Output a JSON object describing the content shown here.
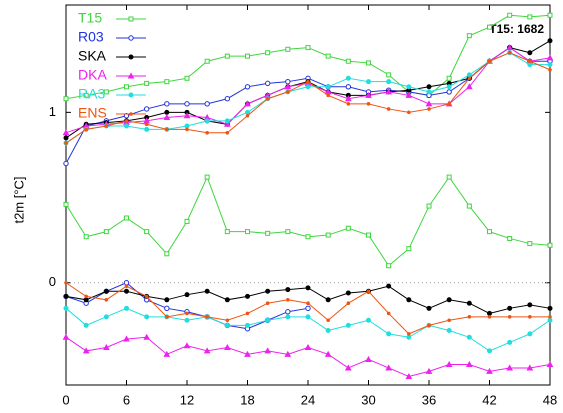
{
  "chart_data": {
    "type": "line",
    "ylabel": "t2m [°C]",
    "annotation": "T15: 1682",
    "x": [
      0,
      2,
      4,
      6,
      8,
      10,
      12,
      14,
      16,
      18,
      20,
      22,
      24,
      26,
      28,
      30,
      32,
      34,
      36,
      38,
      40,
      42,
      44,
      46,
      48
    ],
    "xlim": [
      0,
      48
    ],
    "xticks": [
      0,
      6,
      12,
      18,
      24,
      30,
      36,
      42,
      48
    ],
    "ylim": [
      -0.6,
      1.63
    ],
    "yticks": [
      0,
      1
    ],
    "zero_line": true,
    "legend": "upper-left",
    "series": [
      {
        "name": "T15",
        "color": "#3ed63e",
        "marker": "square",
        "values": [
          1.08,
          1.1,
          1.12,
          1.15,
          1.17,
          1.18,
          1.2,
          1.3,
          1.33,
          1.33,
          1.35,
          1.37,
          1.38,
          1.33,
          1.3,
          1.29,
          1.22,
          1.12,
          1.1,
          1.2,
          1.45,
          1.5,
          1.57,
          1.56,
          1.57
        ],
        "values_lower": [
          0.46,
          0.27,
          0.3,
          0.38,
          0.3,
          0.17,
          0.36,
          0.62,
          0.3,
          0.3,
          0.29,
          0.3,
          0.27,
          0.28,
          0.32,
          0.28,
          0.1,
          0.2,
          0.45,
          0.62,
          0.45,
          0.3,
          0.26,
          0.23,
          0.22
        ]
      },
      {
        "name": "R03",
        "color": "#2233dd",
        "marker": "circle",
        "values": [
          0.7,
          0.92,
          0.95,
          0.98,
          1.02,
          1.05,
          1.05,
          1.05,
          1.08,
          1.15,
          1.17,
          1.18,
          1.2,
          1.15,
          1.15,
          1.12,
          1.13,
          1.12,
          1.1,
          1.12,
          1.2,
          1.3,
          1.38,
          1.3,
          1.3
        ],
        "values_lower": [
          -0.08,
          -0.12,
          -0.05,
          0.0,
          -0.1,
          -0.15,
          -0.17,
          -0.2,
          -0.25,
          -0.27,
          -0.22,
          -0.17,
          -0.15,
          null,
          null,
          null,
          null,
          null,
          null,
          null,
          null,
          null,
          null,
          null,
          null
        ]
      },
      {
        "name": "SKA",
        "color": "#000000",
        "marker": "dot",
        "values": [
          0.85,
          0.93,
          0.94,
          0.95,
          0.97,
          1.0,
          1.0,
          0.95,
          0.93,
          1.05,
          1.1,
          1.15,
          1.18,
          1.12,
          1.1,
          1.1,
          1.12,
          1.13,
          1.15,
          1.17,
          1.2,
          1.3,
          1.38,
          1.35,
          1.42
        ],
        "values_lower": [
          -0.08,
          -0.1,
          -0.05,
          -0.05,
          -0.08,
          -0.1,
          -0.07,
          -0.05,
          -0.1,
          -0.08,
          -0.05,
          -0.04,
          -0.03,
          -0.1,
          -0.06,
          -0.05,
          -0.02,
          -0.1,
          -0.15,
          -0.1,
          -0.12,
          -0.18,
          -0.15,
          -0.13,
          -0.15
        ]
      },
      {
        "name": "DKA",
        "color": "#ee22ee",
        "marker": "triangle",
        "values": [
          0.88,
          0.92,
          0.93,
          0.94,
          0.95,
          0.97,
          0.98,
          0.97,
          0.93,
          1.05,
          1.1,
          1.15,
          1.17,
          1.12,
          1.08,
          1.1,
          1.12,
          1.1,
          1.05,
          1.05,
          1.15,
          1.3,
          1.38,
          1.3,
          1.32
        ],
        "values_lower": [
          -0.32,
          -0.4,
          -0.38,
          -0.33,
          -0.32,
          -0.42,
          -0.37,
          -0.4,
          -0.38,
          -0.42,
          -0.4,
          -0.42,
          -0.38,
          -0.42,
          -0.5,
          -0.45,
          -0.5,
          -0.55,
          -0.52,
          -0.48,
          -0.48,
          -0.52,
          -0.5,
          -0.5,
          -0.48
        ]
      },
      {
        "name": "RA3",
        "color": "#22dddd",
        "marker": "dot",
        "values": [
          0.82,
          0.9,
          0.92,
          0.92,
          0.9,
          0.9,
          0.92,
          0.95,
          0.95,
          1.0,
          1.08,
          1.12,
          1.15,
          1.15,
          1.2,
          1.18,
          1.18,
          1.15,
          1.12,
          1.15,
          1.22,
          1.3,
          1.35,
          1.28,
          1.28
        ],
        "values_lower": [
          -0.15,
          -0.25,
          -0.2,
          -0.15,
          -0.2,
          -0.2,
          -0.22,
          -0.2,
          -0.25,
          -0.25,
          -0.22,
          -0.2,
          -0.2,
          -0.28,
          -0.25,
          -0.22,
          -0.3,
          -0.32,
          -0.25,
          -0.28,
          -0.32,
          -0.4,
          -0.35,
          -0.3,
          -0.22
        ]
      },
      {
        "name": "ENS",
        "color": "#ee5511",
        "marker": "small",
        "values": [
          0.82,
          0.9,
          0.92,
          0.95,
          0.93,
          0.9,
          0.9,
          0.88,
          0.88,
          0.98,
          1.08,
          1.12,
          1.18,
          1.1,
          1.05,
          1.05,
          1.02,
          1.0,
          1.02,
          1.05,
          1.2,
          1.3,
          1.35,
          1.3,
          1.25
        ],
        "values_lower": [
          0.0,
          -0.08,
          -0.1,
          -0.02,
          -0.08,
          -0.2,
          -0.18,
          -0.2,
          -0.22,
          -0.18,
          -0.12,
          -0.1,
          -0.12,
          -0.22,
          -0.12,
          -0.05,
          -0.18,
          -0.3,
          -0.25,
          -0.22,
          -0.2,
          -0.2,
          -0.2,
          -0.2,
          -0.2
        ]
      }
    ]
  }
}
